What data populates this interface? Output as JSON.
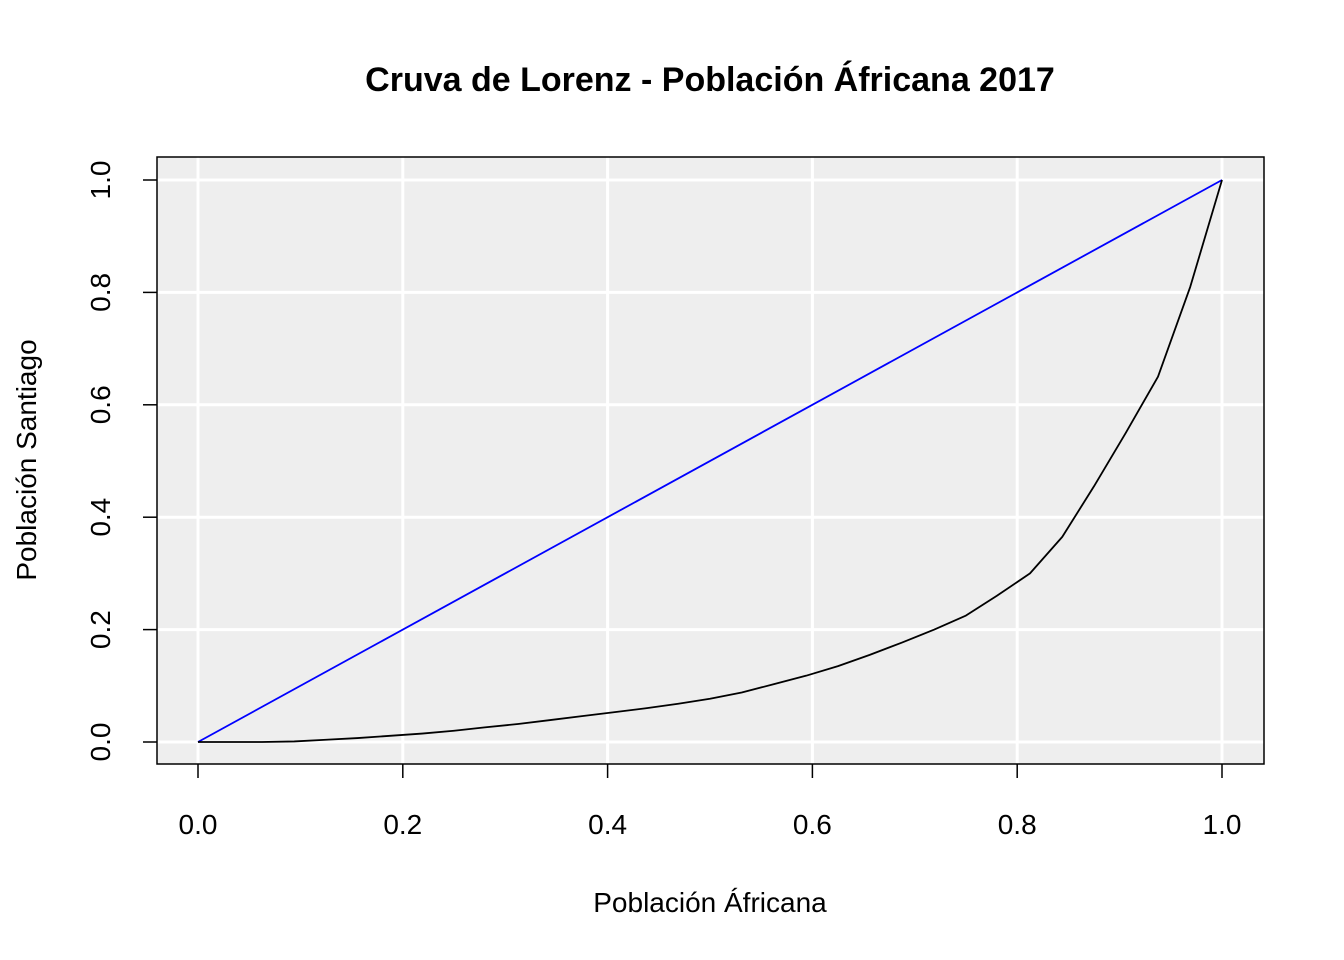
{
  "chart_data": {
    "type": "line",
    "title": "Cruva de Lorenz - Población Áfricana 2017",
    "xlabel": "Población Áfricana",
    "ylabel": "Población Santiago",
    "xlim": [
      0,
      1
    ],
    "ylim": [
      0,
      1
    ],
    "xticks": [
      "0.0",
      "0.2",
      "0.4",
      "0.6",
      "0.8",
      "1.0"
    ],
    "yticks": [
      "0.0",
      "0.2",
      "0.4",
      "0.6",
      "0.8",
      "1.0"
    ],
    "grid": true,
    "colors": {
      "panel_background": "#eeeeee",
      "grid": "#ffffff",
      "equality_line": "#0000ff",
      "lorenz_curve": "#000000"
    },
    "series": [
      {
        "x": [
          0.0,
          1.0
        ],
        "y": [
          0.0,
          1.0
        ]
      },
      {
        "x": [
          0.0,
          0.03,
          0.0625,
          0.094,
          0.125,
          0.156,
          0.1875,
          0.219,
          0.25,
          0.28,
          0.3125,
          0.344,
          0.375,
          0.406,
          0.4375,
          0.469,
          0.5,
          0.531,
          0.5625,
          0.594,
          0.625,
          0.656,
          0.6875,
          0.719,
          0.75,
          0.78,
          0.8125,
          0.844,
          0.875,
          0.906,
          0.9375,
          0.969,
          1.0
        ],
        "y": [
          0.0,
          0.0,
          0.0,
          0.001,
          0.004,
          0.007,
          0.011,
          0.015,
          0.02,
          0.026,
          0.032,
          0.039,
          0.046,
          0.053,
          0.06,
          0.068,
          0.077,
          0.088,
          0.103,
          0.118,
          0.135,
          0.155,
          0.177,
          0.2,
          0.225,
          0.26,
          0.3,
          0.365,
          0.455,
          0.55,
          0.65,
          0.81,
          1.0
        ]
      }
    ]
  }
}
